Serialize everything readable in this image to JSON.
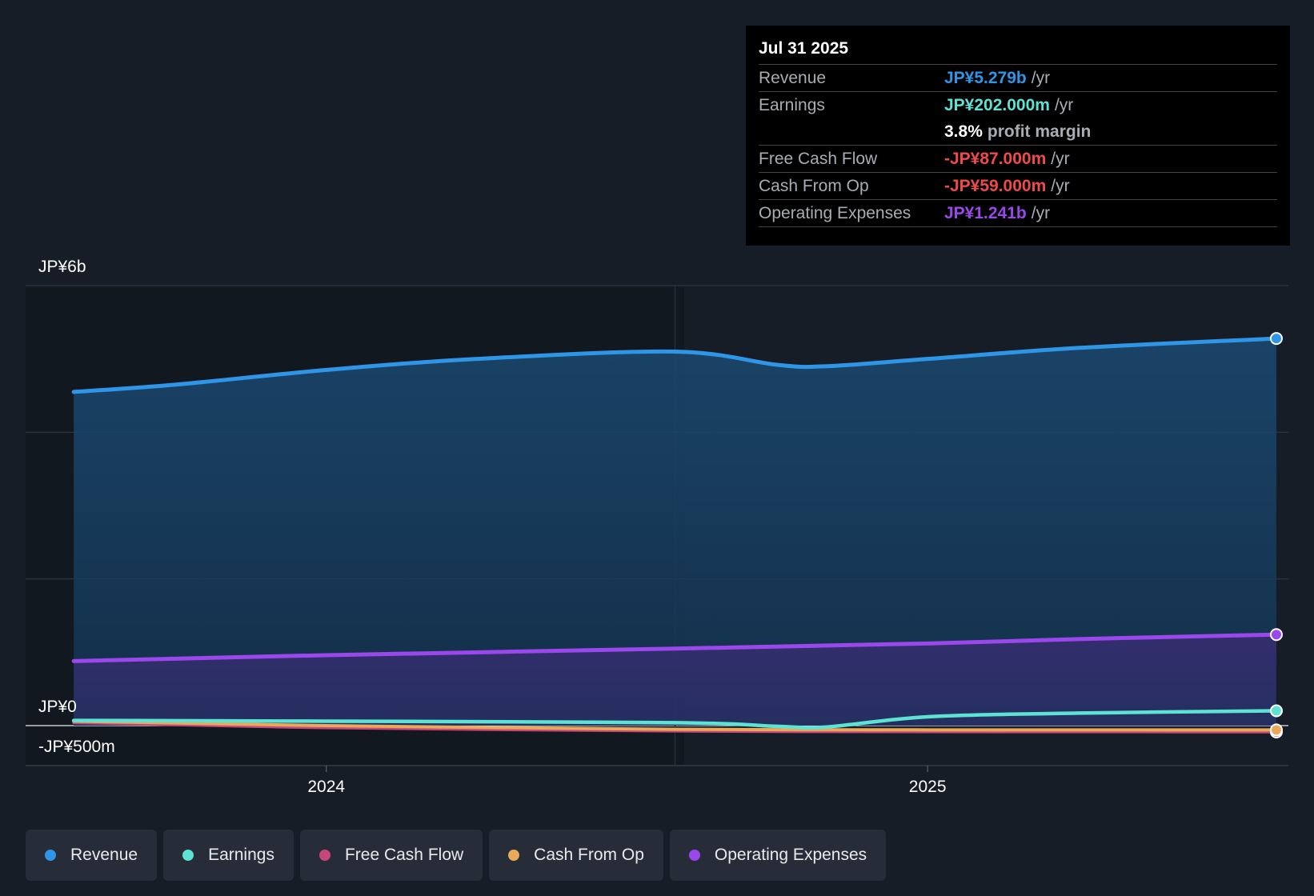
{
  "colors": {
    "revenue": "#2f95e6",
    "earnings": "#5de2d4",
    "free_cash_flow": "#c8477a",
    "cash_from_op": "#e9a95a",
    "operating_expenses": "#9a48eb",
    "negative": "#f04a4a",
    "background": "#161d27"
  },
  "tooltip": {
    "date": "Jul 31 2025",
    "rows": [
      {
        "label": "Revenue",
        "value": "JP¥5.279b",
        "unit": "/yr"
      },
      {
        "label": "Earnings",
        "value": "JP¥202.000m",
        "unit": "/yr"
      },
      {
        "label": "",
        "value": "3.8%",
        "unit": "profit margin"
      },
      {
        "label": "Free Cash Flow",
        "value": "-JP¥87.000m",
        "unit": "/yr"
      },
      {
        "label": "Cash From Op",
        "value": "-JP¥59.000m",
        "unit": "/yr"
      },
      {
        "label": "Operating Expenses",
        "value": "JP¥1.241b",
        "unit": "/yr"
      }
    ]
  },
  "legend": [
    {
      "label": "Revenue",
      "key": "revenue"
    },
    {
      "label": "Earnings",
      "key": "earnings"
    },
    {
      "label": "Free Cash Flow",
      "key": "free_cash_flow"
    },
    {
      "label": "Cash From Op",
      "key": "cash_from_op"
    },
    {
      "label": "Operating Expenses",
      "key": "operating_expenses"
    }
  ],
  "chart_data": {
    "type": "area",
    "title": "",
    "y_labels": {
      "top": "JP¥6b",
      "zero": "JP¥0",
      "bottom": "-JP¥500m"
    },
    "x_tick_labels": [
      {
        "label": "2024",
        "x": 2024.0
      },
      {
        "label": "2025",
        "x": 2025.0
      }
    ],
    "ylim": [
      -500,
      6000
    ],
    "xlim": [
      2023.5,
      2025.6
    ],
    "past_boundary_x": 2024.58,
    "series": [
      {
        "name": "Revenue",
        "key": "revenue",
        "x": [
          2023.58,
          2023.75,
          2024.0,
          2024.25,
          2024.58,
          2024.75,
          2024.83,
          2025.0,
          2025.25,
          2025.58
        ],
        "values": [
          4550,
          4650,
          4850,
          5000,
          5100,
          4920,
          4900,
          5000,
          5150,
          5279
        ]
      },
      {
        "name": "Earnings",
        "key": "earnings",
        "x": [
          2023.58,
          2024.0,
          2024.58,
          2024.75,
          2024.83,
          2025.0,
          2025.25,
          2025.58
        ],
        "values": [
          70,
          60,
          40,
          -10,
          -20,
          120,
          170,
          202
        ]
      },
      {
        "name": "Free Cash Flow",
        "key": "free_cash_flow",
        "x": [
          2023.58,
          2024.0,
          2024.58,
          2025.0,
          2025.58
        ],
        "values": [
          40,
          -30,
          -75,
          -85,
          -87
        ]
      },
      {
        "name": "Cash From Op",
        "key": "cash_from_op",
        "x": [
          2023.58,
          2024.0,
          2024.58,
          2025.0,
          2025.58
        ],
        "values": [
          60,
          0,
          -50,
          -58,
          -59
        ]
      },
      {
        "name": "Operating Expenses",
        "key": "operating_expenses",
        "x": [
          2023.58,
          2024.0,
          2024.58,
          2025.0,
          2025.25,
          2025.58
        ],
        "values": [
          880,
          960,
          1050,
          1120,
          1180,
          1241
        ]
      }
    ]
  }
}
